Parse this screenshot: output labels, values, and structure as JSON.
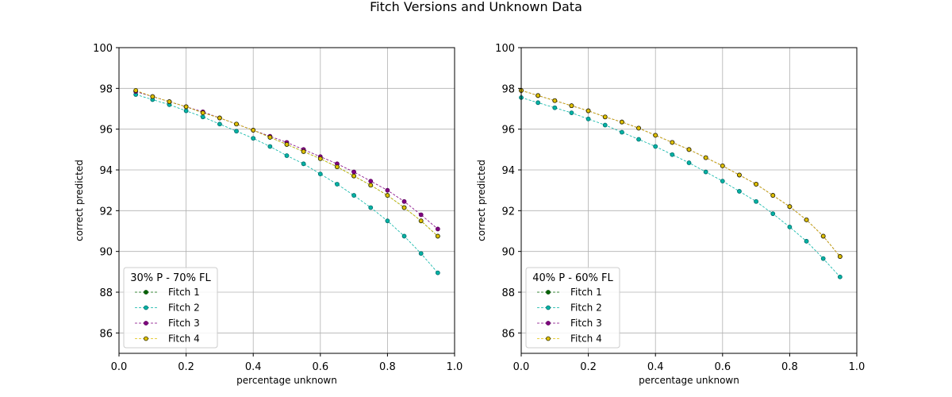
{
  "figure": {
    "title": "Fitch Versions and Unknown Data"
  },
  "chart_data": [
    {
      "type": "line",
      "xlabel": "percentage unknown",
      "ylabel": "correct predicted",
      "xlim": [
        0.0,
        1.0
      ],
      "ylim": [
        85,
        100
      ],
      "xticks": [
        0.0,
        0.2,
        0.4,
        0.6,
        0.8,
        1.0
      ],
      "xtick_labels": [
        "0.0",
        "0.2",
        "0.4",
        "0.6",
        "0.8",
        "1.0"
      ],
      "yticks": [
        86,
        88,
        90,
        92,
        94,
        96,
        98,
        100
      ],
      "ytick_labels": [
        "86",
        "88",
        "90",
        "92",
        "94",
        "96",
        "98",
        "100"
      ],
      "grid": true,
      "legend_title": "30% P - 70% FL",
      "legend_loc": "lower-left",
      "x": [
        0.05,
        0.1,
        0.15,
        0.2,
        0.25,
        0.3,
        0.35,
        0.4,
        0.45,
        0.5,
        0.55,
        0.6,
        0.65,
        0.7,
        0.75,
        0.8,
        0.85,
        0.9,
        0.95
      ],
      "series": [
        {
          "name": "Fitch 1",
          "color": "#006400",
          "marker_edge": "#0a4d0a",
          "values": [
            97.85,
            97.6,
            97.35,
            97.1,
            96.8,
            96.55,
            96.25,
            95.95,
            95.6,
            95.25,
            94.9,
            94.55,
            94.15,
            93.7,
            93.25,
            92.75,
            92.15,
            91.5,
            90.75
          ]
        },
        {
          "name": "Fitch 2",
          "color": "#00b3a4",
          "marker_edge": "#006b6b",
          "values": [
            97.7,
            97.45,
            97.2,
            96.9,
            96.6,
            96.25,
            95.9,
            95.55,
            95.15,
            94.7,
            94.3,
            93.8,
            93.3,
            92.75,
            92.15,
            91.5,
            90.75,
            89.9,
            88.95
          ]
        },
        {
          "name": "Fitch 3",
          "color": "#800080",
          "marker_edge": "#5a005a",
          "values": [
            97.85,
            97.6,
            97.35,
            97.1,
            96.85,
            96.55,
            96.25,
            95.95,
            95.65,
            95.35,
            95.0,
            94.65,
            94.3,
            93.9,
            93.45,
            93.0,
            92.45,
            91.8,
            91.1
          ]
        },
        {
          "name": "Fitch 4",
          "color": "#e0c000",
          "marker_edge": "#2f2f00",
          "values": [
            97.9,
            97.6,
            97.35,
            97.1,
            96.8,
            96.55,
            96.25,
            95.95,
            95.6,
            95.25,
            94.9,
            94.55,
            94.15,
            93.7,
            93.25,
            92.75,
            92.15,
            91.5,
            90.75
          ]
        }
      ]
    },
    {
      "type": "line",
      "xlabel": "percentage unknown",
      "ylabel": "correct predicted",
      "xlim": [
        0.0,
        1.0
      ],
      "ylim": [
        85,
        100
      ],
      "xticks": [
        0.0,
        0.2,
        0.4,
        0.6,
        0.8,
        1.0
      ],
      "xtick_labels": [
        "0.0",
        "0.2",
        "0.4",
        "0.6",
        "0.8",
        "1.0"
      ],
      "yticks": [
        86,
        88,
        90,
        92,
        94,
        96,
        98,
        100
      ],
      "ytick_labels": [
        "86",
        "88",
        "90",
        "92",
        "94",
        "96",
        "98",
        "100"
      ],
      "grid": true,
      "legend_title": "40% P - 60% FL",
      "legend_loc": "lower-left",
      "x": [
        0.0,
        0.05,
        0.1,
        0.15,
        0.2,
        0.25,
        0.3,
        0.35,
        0.4,
        0.45,
        0.5,
        0.55,
        0.6,
        0.65,
        0.7,
        0.75,
        0.8,
        0.85,
        0.9,
        0.95
      ],
      "series": [
        {
          "name": "Fitch 1",
          "color": "#006400",
          "marker_edge": "#0a4d0a",
          "values": [
            97.9,
            97.65,
            97.4,
            97.15,
            96.9,
            96.6,
            96.35,
            96.05,
            95.7,
            95.35,
            95.0,
            94.6,
            94.2,
            93.75,
            93.3,
            92.75,
            92.2,
            91.55,
            90.75,
            89.75
          ]
        },
        {
          "name": "Fitch 2",
          "color": "#00b3a4",
          "marker_edge": "#006b6b",
          "values": [
            97.55,
            97.3,
            97.05,
            96.8,
            96.5,
            96.2,
            95.85,
            95.5,
            95.15,
            94.75,
            94.35,
            93.9,
            93.45,
            92.95,
            92.45,
            91.85,
            91.2,
            90.5,
            89.65,
            88.75
          ]
        },
        {
          "name": "Fitch 3",
          "color": "#800080",
          "marker_edge": "#5a005a",
          "values": [
            97.9,
            97.65,
            97.4,
            97.15,
            96.9,
            96.6,
            96.35,
            96.05,
            95.7,
            95.35,
            95.0,
            94.6,
            94.2,
            93.75,
            93.3,
            92.75,
            92.2,
            91.55,
            90.75,
            89.75
          ]
        },
        {
          "name": "Fitch 4",
          "color": "#e0c000",
          "marker_edge": "#2f2f00",
          "values": [
            97.9,
            97.65,
            97.4,
            97.15,
            96.9,
            96.6,
            96.35,
            96.05,
            95.7,
            95.35,
            95.0,
            94.6,
            94.2,
            93.75,
            93.3,
            92.75,
            92.2,
            91.55,
            90.75,
            89.75
          ]
        }
      ]
    }
  ]
}
